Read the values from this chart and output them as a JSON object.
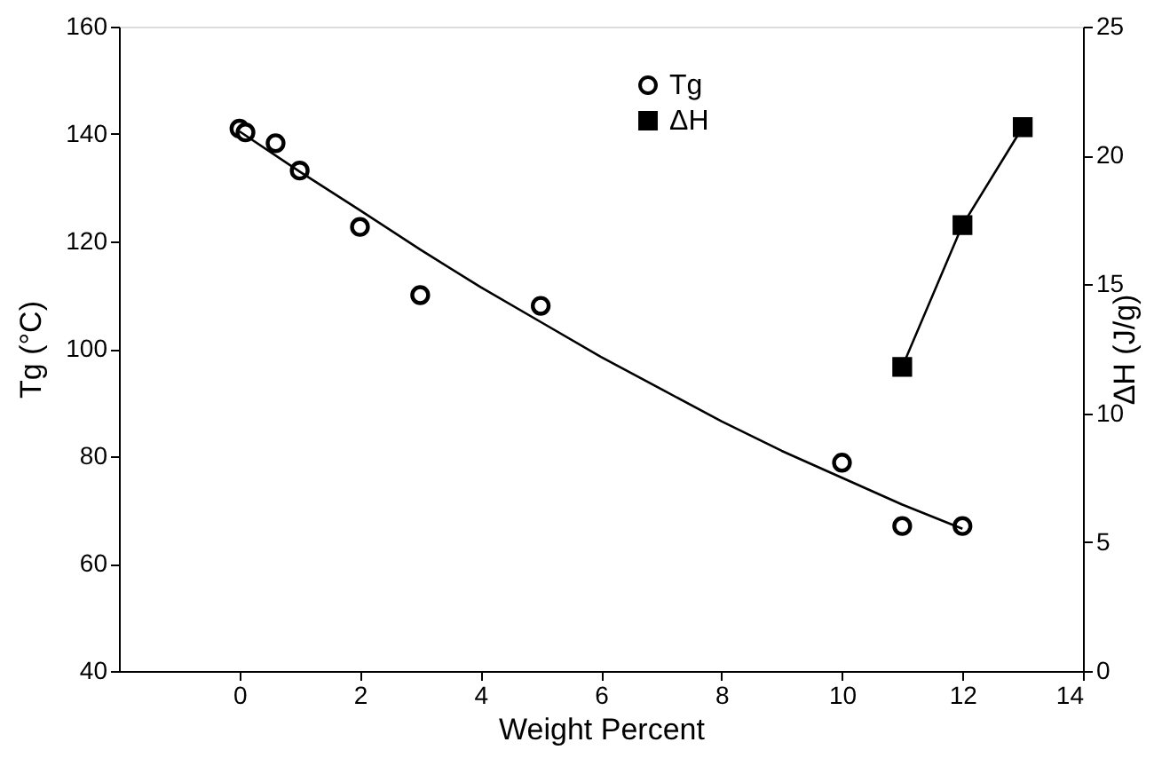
{
  "chart_data": {
    "type": "scatter",
    "xlabel": "Weight Percent",
    "ylabel": "Tg (°C)",
    "y2label": "ΔH (J/g)",
    "series": [
      {
        "name": "Tg",
        "color": "#000000",
        "marker": "circle",
        "x": [
          0,
          0.1,
          0.6,
          1,
          2,
          3,
          5,
          10,
          11,
          12
        ],
        "values": [
          141,
          140.3,
          138.3,
          133.2,
          122.7,
          110,
          108,
          78.8,
          67,
          67
        ]
      },
      {
        "type": "line",
        "color": "#000000",
        "marker": "none",
        "line_style": "solid",
        "x": [
          0,
          1,
          2,
          3,
          4,
          5,
          6,
          7,
          8,
          9,
          10,
          11,
          12
        ],
        "values": [
          140.5,
          133,
          125.8,
          118.5,
          111.5,
          105,
          98.5,
          92.5,
          86.5,
          81,
          76,
          71,
          66.5
        ]
      },
      {
        "name": "ΔH",
        "type": "line",
        "axis": "y2",
        "color": "#000000",
        "marker": "square",
        "line_style": "solid",
        "x": [
          11,
          12,
          13
        ],
        "values": [
          11.8,
          17.3,
          21.1
        ]
      }
    ],
    "xlim": [
      -2,
      14
    ],
    "xticks": [
      0,
      2,
      4,
      6,
      8,
      10,
      12,
      14
    ],
    "ylim": [
      40,
      160
    ],
    "yticks": [
      40,
      60,
      80,
      100,
      120,
      140,
      160
    ],
    "y2lim": [
      0,
      25
    ],
    "y2ticks": [
      0,
      5,
      10,
      15,
      20,
      25
    ],
    "grid": false,
    "legend": "top"
  }
}
